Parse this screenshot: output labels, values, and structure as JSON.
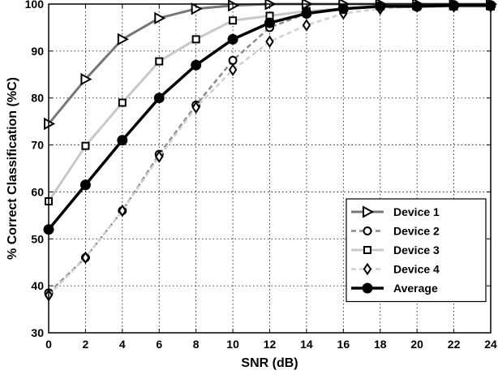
{
  "chart_data": {
    "type": "line",
    "title": "",
    "xlabel": "SNR (dB)",
    "ylabel": "% Correct Classification (%C)",
    "xlim": [
      0,
      24
    ],
    "ylim": [
      30,
      100
    ],
    "xticks": [
      0,
      2,
      4,
      6,
      8,
      10,
      12,
      14,
      16,
      18,
      20,
      22,
      24
    ],
    "yticks": [
      30,
      40,
      50,
      60,
      70,
      80,
      90,
      100
    ],
    "grid": true,
    "legend_position": "lower-right",
    "x": [
      0,
      2,
      4,
      6,
      8,
      10,
      12,
      14,
      16,
      18,
      20,
      22,
      24
    ],
    "series": [
      {
        "name": "Device 1",
        "marker": "triangle-right",
        "color": "#777777",
        "dash": "solid",
        "width": 3,
        "values": [
          74.5,
          84,
          92.5,
          97,
          99,
          99.7,
          100,
          100,
          100,
          100,
          100,
          100,
          100
        ]
      },
      {
        "name": "Device 2",
        "marker": "circle-open",
        "color": "#8a8a8a",
        "dash": "dashed",
        "width": 2.5,
        "values": [
          38.5,
          46,
          56,
          68,
          78.5,
          88,
          95,
          98,
          99,
          99.5,
          99.5,
          99.5,
          99.5
        ]
      },
      {
        "name": "Device 3",
        "marker": "square-open",
        "color": "#c8c8c8",
        "dash": "solid",
        "width": 3,
        "values": [
          58,
          69.8,
          79,
          87.8,
          92.5,
          96.5,
          97.5,
          98.5,
          99,
          99.5,
          99.5,
          99.5,
          99.5
        ]
      },
      {
        "name": "Device 4",
        "marker": "diamond-open",
        "color": "#d0d0d0",
        "dash": "dashed",
        "width": 2.5,
        "values": [
          38,
          46,
          56,
          67.5,
          78,
          86,
          92,
          95.5,
          98,
          99,
          99.5,
          99.5,
          99.5
        ]
      },
      {
        "name": "Average",
        "marker": "circle-filled",
        "color": "#000000",
        "dash": "solid",
        "width": 3.5,
        "values": [
          52,
          61.5,
          71,
          80,
          87,
          92.5,
          96,
          98,
          99,
          99.5,
          99.5,
          99.7,
          99.7
        ]
      }
    ]
  }
}
